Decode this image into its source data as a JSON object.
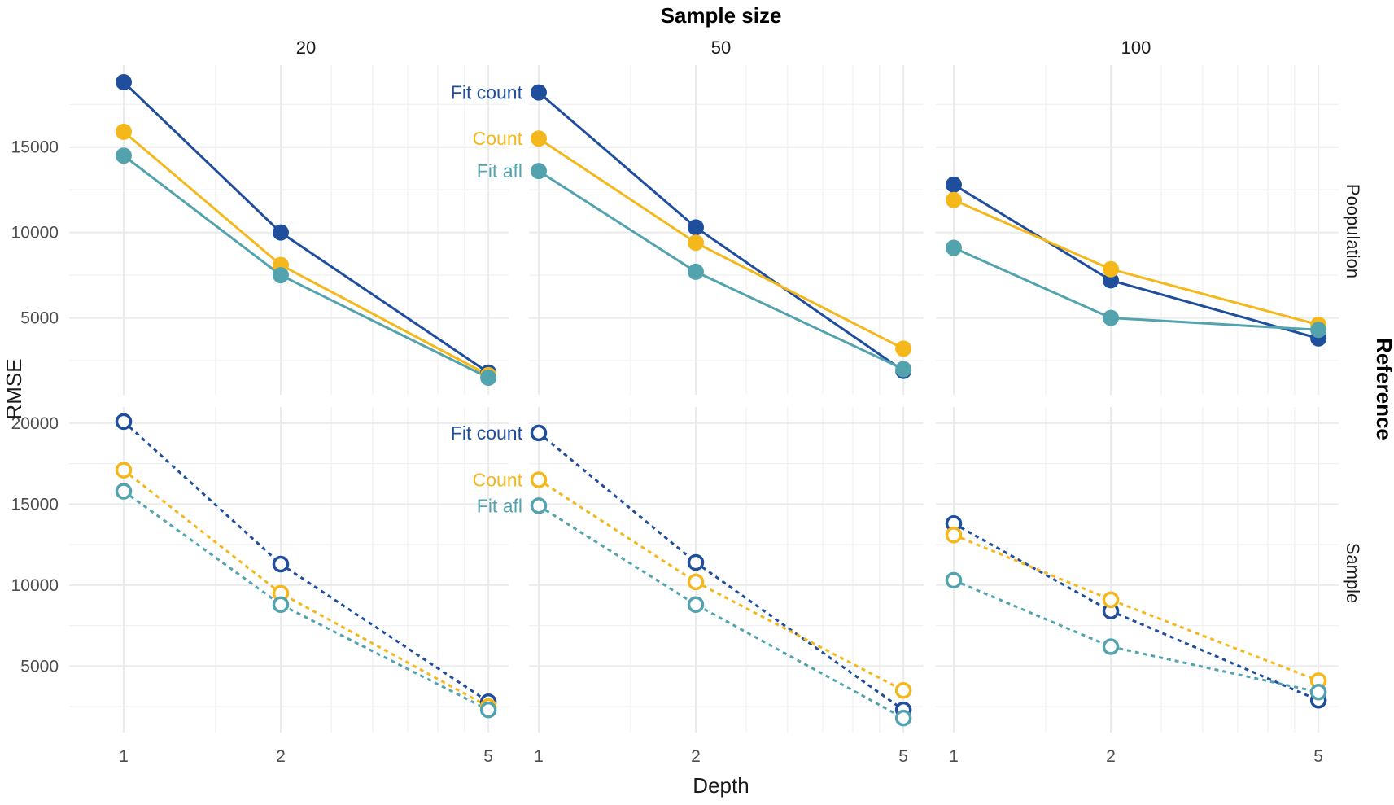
{
  "chart_data": {
    "type": "line",
    "xlabel": "Depth",
    "ylabel": "RMSE",
    "col_strip_title": "Sample size",
    "row_strip_title": "Reference",
    "x_scale": "log",
    "x_ticks": [
      1,
      2,
      5
    ],
    "x_tick_labels": [
      "1",
      "2",
      "5"
    ],
    "x": [
      1,
      2,
      5
    ],
    "columns": [
      "20",
      "50",
      "100"
    ],
    "rows": [
      "Poopulation",
      "Sample"
    ],
    "colors": {
      "Fit count": "#1f4e9c",
      "Count": "#f5b81c",
      "Fit afl": "#52a3ae"
    },
    "panels": [
      {
        "row": "Poopulation",
        "col": "20",
        "ylim": [
          500,
          19800
        ],
        "y_ticks": [
          5000,
          10000,
          15000
        ],
        "y_tick_labels": [
          "5000",
          "10000",
          "15000"
        ],
        "line_style": "solid",
        "marker": "filled",
        "series_labels_shown": false,
        "series": [
          {
            "name": "Fit count",
            "values": [
              18800,
              10000,
              1800
            ]
          },
          {
            "name": "Count",
            "values": [
              15900,
              8100,
              1650
            ]
          },
          {
            "name": "Fit afl",
            "values": [
              14500,
              7500,
              1500
            ]
          }
        ]
      },
      {
        "row": "Poopulation",
        "col": "50",
        "ylim": [
          500,
          19800
        ],
        "y_ticks": [
          5000,
          10000,
          15000
        ],
        "y_tick_labels": [
          "5000",
          "10000",
          "15000"
        ],
        "line_style": "solid",
        "marker": "filled",
        "series_labels_shown": true,
        "series": [
          {
            "name": "Fit count",
            "values": [
              18200,
              10300,
              1900
            ]
          },
          {
            "name": "Count",
            "values": [
              15500,
              9400,
              3200
            ]
          },
          {
            "name": "Fit afl",
            "values": [
              13600,
              7700,
              2000
            ]
          }
        ]
      },
      {
        "row": "Poopulation",
        "col": "100",
        "ylim": [
          500,
          19800
        ],
        "y_ticks": [
          5000,
          10000,
          15000
        ],
        "y_tick_labels": [
          "5000",
          "10000",
          "15000"
        ],
        "line_style": "solid",
        "marker": "filled",
        "series_labels_shown": false,
        "series": [
          {
            "name": "Fit count",
            "values": [
              12800,
              7200,
              3800
            ]
          },
          {
            "name": "Count",
            "values": [
              11900,
              7850,
              4600
            ]
          },
          {
            "name": "Fit afl",
            "values": [
              9100,
              5000,
              4300
            ]
          }
        ]
      },
      {
        "row": "Sample",
        "col": "20",
        "ylim": [
          900,
          21000
        ],
        "y_ticks": [
          5000,
          10000,
          15000,
          20000
        ],
        "y_tick_labels": [
          "5000",
          "10000",
          "15000",
          "20000"
        ],
        "line_style": "dashed",
        "marker": "open",
        "series_labels_shown": false,
        "series": [
          {
            "name": "Fit count",
            "values": [
              20100,
              11300,
              2800
            ]
          },
          {
            "name": "Count",
            "values": [
              17100,
              9500,
              2500
            ]
          },
          {
            "name": "Fit afl",
            "values": [
              15800,
              8800,
              2300
            ]
          }
        ]
      },
      {
        "row": "Sample",
        "col": "50",
        "ylim": [
          900,
          21000
        ],
        "y_ticks": [
          5000,
          10000,
          15000,
          20000
        ],
        "y_tick_labels": [
          "5000",
          "10000",
          "15000",
          "20000"
        ],
        "line_style": "dashed",
        "marker": "open",
        "series_labels_shown": true,
        "series": [
          {
            "name": "Fit count",
            "values": [
              19400,
              11400,
              2300
            ]
          },
          {
            "name": "Count",
            "values": [
              16500,
              10200,
              3500
            ]
          },
          {
            "name": "Fit afl",
            "values": [
              14900,
              8800,
              1800
            ]
          }
        ]
      },
      {
        "row": "Sample",
        "col": "100",
        "ylim": [
          900,
          21000
        ],
        "y_ticks": [
          5000,
          10000,
          15000,
          20000
        ],
        "y_tick_labels": [
          "5000",
          "10000",
          "15000",
          "20000"
        ],
        "line_style": "dashed",
        "marker": "open",
        "series_labels_shown": false,
        "series": [
          {
            "name": "Fit count",
            "values": [
              13800,
              8400,
              2900
            ]
          },
          {
            "name": "Count",
            "values": [
              13100,
              9100,
              4100
            ]
          },
          {
            "name": "Fit afl",
            "values": [
              10300,
              6200,
              3400
            ]
          }
        ]
      }
    ]
  }
}
